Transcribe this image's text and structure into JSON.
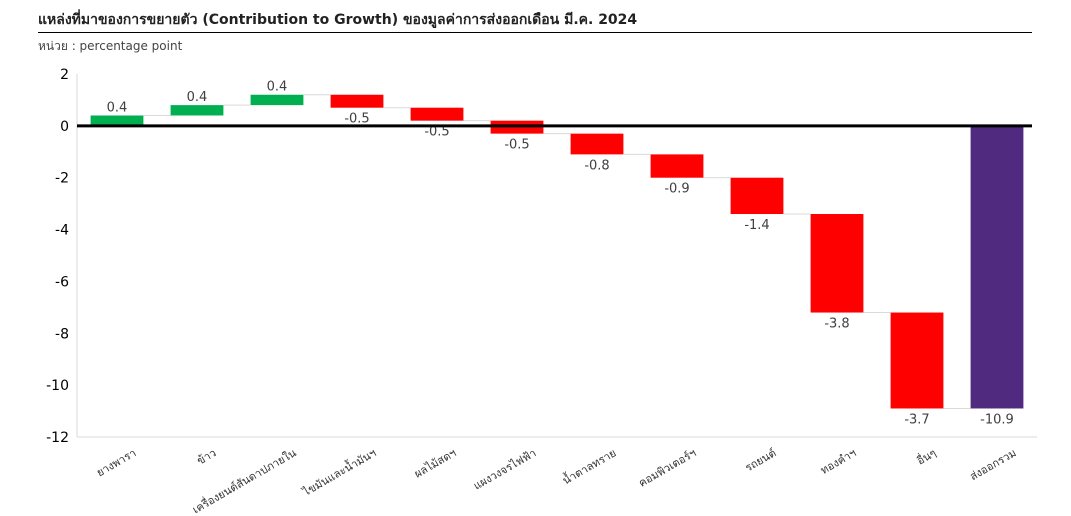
{
  "header": {
    "title": "แหล่งที่มาของการขยายตัว (Contribution to Growth) ของมูลค่าการส่งออกเดือน มี.ค. 2024",
    "unit": "หน่วย : percentage point"
  },
  "chart_data": {
    "type": "waterfall",
    "title": "แหล่งที่มาของการขยายตัว (Contribution to Growth) ของมูลค่าการส่งออกเดือน มี.ค. 2024",
    "ylabel": "",
    "ylim": [
      -12,
      2
    ],
    "yticks": [
      2,
      0,
      -2,
      -4,
      -6,
      -8,
      -10,
      -12
    ],
    "categories": [
      "ยางพารา",
      "ข้าว",
      "เครื่องยนต์สันดาปภายใน",
      "ไขมันและน้ำมันฯ",
      "ผลไม้สดฯ",
      "แผงวงจรไฟฟ้า",
      "น้ำตาลทราย",
      "คอมพิวเตอร์ฯ",
      "รถยนต์",
      "ทองคำฯ",
      "อื่นๆ",
      "ส่งออกรวม"
    ],
    "values": [
      0.4,
      0.4,
      0.4,
      -0.5,
      -0.5,
      -0.5,
      -0.8,
      -0.9,
      -1.4,
      -3.8,
      -3.7,
      -10.9
    ],
    "labels": [
      "0.4",
      "0.4",
      "0.4",
      "-0.5",
      "-0.5",
      "-0.5",
      "-0.8",
      "-0.9",
      "-1.4",
      "-3.8",
      "-3.7",
      "-10.9"
    ],
    "total_index": 11,
    "colors": {
      "positive": "#00b050",
      "negative": "#ff0000",
      "total": "#4f2a7f",
      "connector": "#d9d9d9",
      "axis": "#000000",
      "label": "#404040"
    },
    "grid": false,
    "legend": "none"
  }
}
